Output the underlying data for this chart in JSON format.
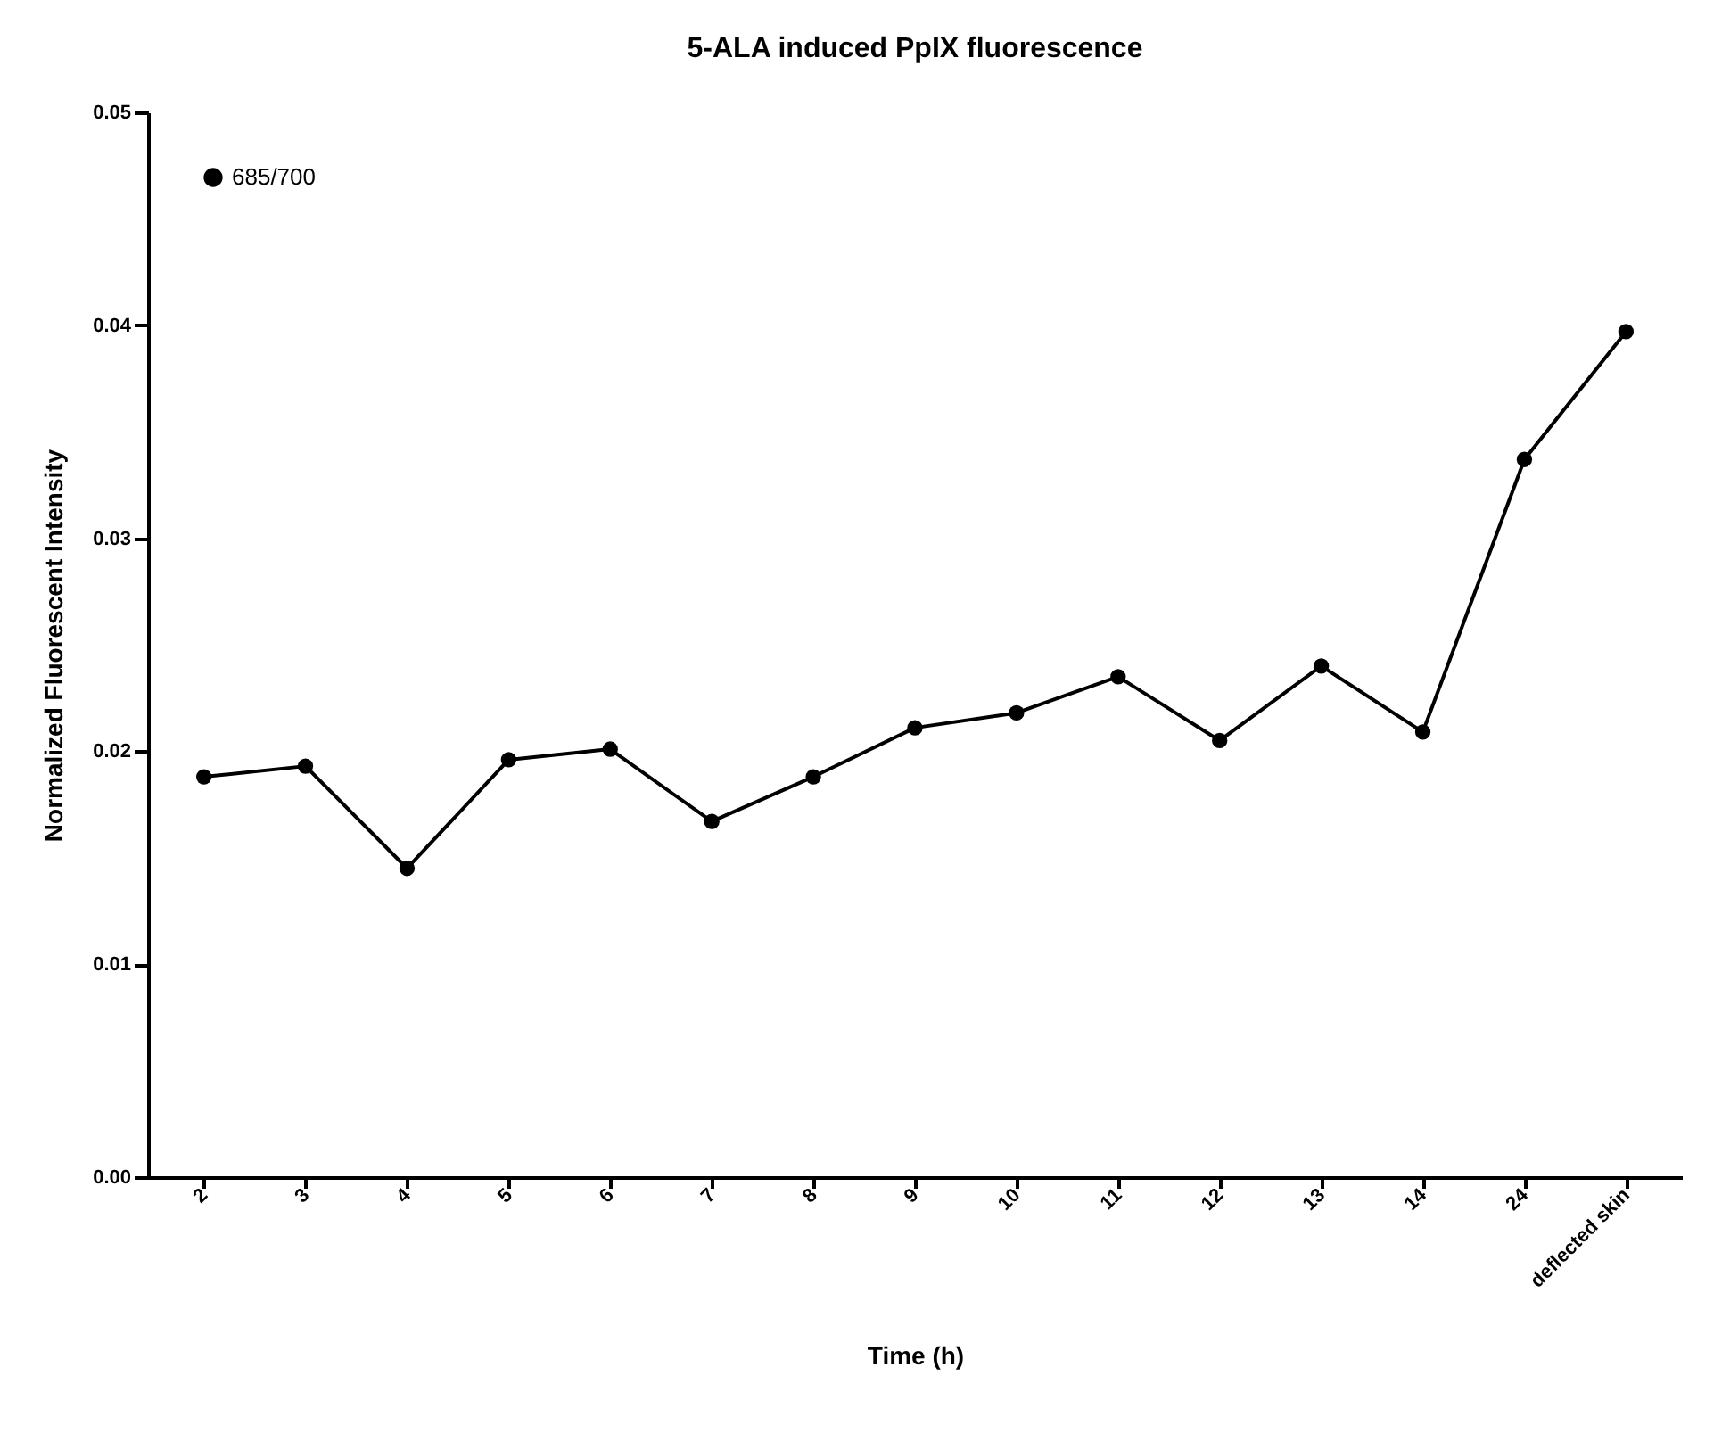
{
  "chart_data": {
    "type": "line",
    "title": "5-ALA induced PpIX fluorescence",
    "xlabel": "Time (h)",
    "ylabel": "Normalized Fluorescent Intensity",
    "categories": [
      "2",
      "3",
      "4",
      "5",
      "6",
      "7",
      "8",
      "9",
      "10",
      "11",
      "12",
      "13",
      "14",
      "24",
      "deflected skin"
    ],
    "series": [
      {
        "name": "685/700",
        "color": "#000000",
        "values": [
          0.0188,
          0.0193,
          0.0145,
          0.0196,
          0.0201,
          0.0167,
          0.0188,
          0.0211,
          0.0218,
          0.0235,
          0.0205,
          0.024,
          0.0209,
          0.0337,
          0.0397
        ]
      }
    ],
    "ylim": [
      0,
      0.05
    ],
    "yticks": [
      {
        "value": 0,
        "label": "0.00"
      },
      {
        "value": 0.01,
        "label": "0.01"
      },
      {
        "value": 0.02,
        "label": "0.02"
      },
      {
        "value": 0.03,
        "label": "0.03"
      },
      {
        "value": 0.04,
        "label": "0.04"
      },
      {
        "value": 0.05,
        "label": "0.05"
      }
    ],
    "grid": false,
    "legend": "top left",
    "marker": "circle",
    "line_style": "solid"
  }
}
